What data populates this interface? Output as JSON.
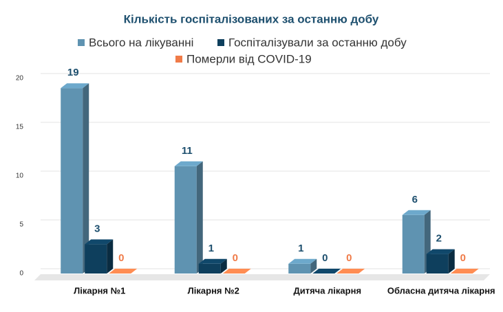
{
  "chart_data": {
    "type": "bar3d",
    "title": "Кількість госпіталізованих за останню добу",
    "categories": [
      "Лікарня №1",
      "Лікарня №2",
      "Дитяча лікарня",
      "Обласна дитяча лікарня"
    ],
    "series": [
      {
        "name": "Всього на лікуванні",
        "color": "#5f93b1",
        "values": [
          19,
          11,
          1,
          6
        ]
      },
      {
        "name": "Госпіталізували за останню добу",
        "color": "#0e3f5d",
        "values": [
          3,
          1,
          0,
          2
        ]
      },
      {
        "name": "Померли від COVID-19",
        "color": "#f07b48",
        "values": [
          0,
          0,
          0,
          0
        ]
      }
    ],
    "ylim": [
      0,
      20
    ],
    "yticks": [
      0,
      5,
      10,
      15,
      20
    ],
    "grid": true
  }
}
